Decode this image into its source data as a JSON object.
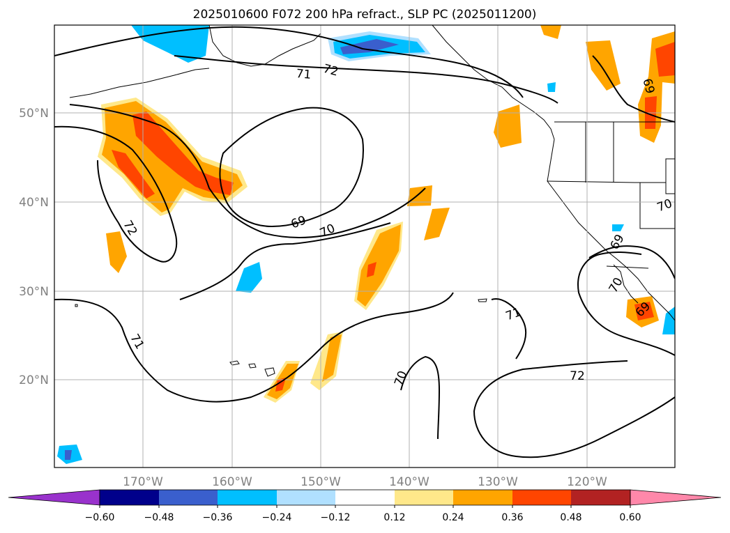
{
  "title": "2025010600 F072 200 hPa refract., SLP PC (2025011200)",
  "map": {
    "lat_ticks": [
      {
        "label": "50°N",
        "value": 50
      },
      {
        "label": "40°N",
        "value": 40
      },
      {
        "label": "30°N",
        "value": 30
      },
      {
        "label": "20°N",
        "value": 20
      }
    ],
    "lon_ticks": [
      {
        "label": "170°W",
        "value": -170
      },
      {
        "label": "160°W",
        "value": -160
      },
      {
        "label": "150°W",
        "value": -150
      },
      {
        "label": "140°W",
        "value": -140
      },
      {
        "label": "130°W",
        "value": -130
      },
      {
        "label": "120°W",
        "value": -120
      }
    ],
    "contour_labels": [
      "72",
      "71",
      "69",
      "70",
      "72",
      "71",
      "70",
      "72",
      "69",
      "70",
      "69",
      "70",
      "71",
      "69"
    ],
    "fill_colors": {
      "pos_012": "#ffe88a",
      "pos_024": "#ffa500",
      "pos_036": "#ff4500",
      "neg_012": "#b0e0ff",
      "neg_024": "#00bfff",
      "neg_036": "#3a5fcd"
    }
  },
  "colorbar": {
    "labels": [
      "−0.60",
      "−0.48",
      "−0.36",
      "−0.24",
      "−0.12",
      "0.12",
      "0.24",
      "0.36",
      "0.48",
      "0.60"
    ],
    "colors": [
      "#9932cc",
      "#00008b",
      "#3a5fcd",
      "#00bfff",
      "#b0e0ff",
      "#ffffff",
      "#ffe88a",
      "#ffa500",
      "#ff4500",
      "#b22222",
      "#ff88aa"
    ]
  }
}
